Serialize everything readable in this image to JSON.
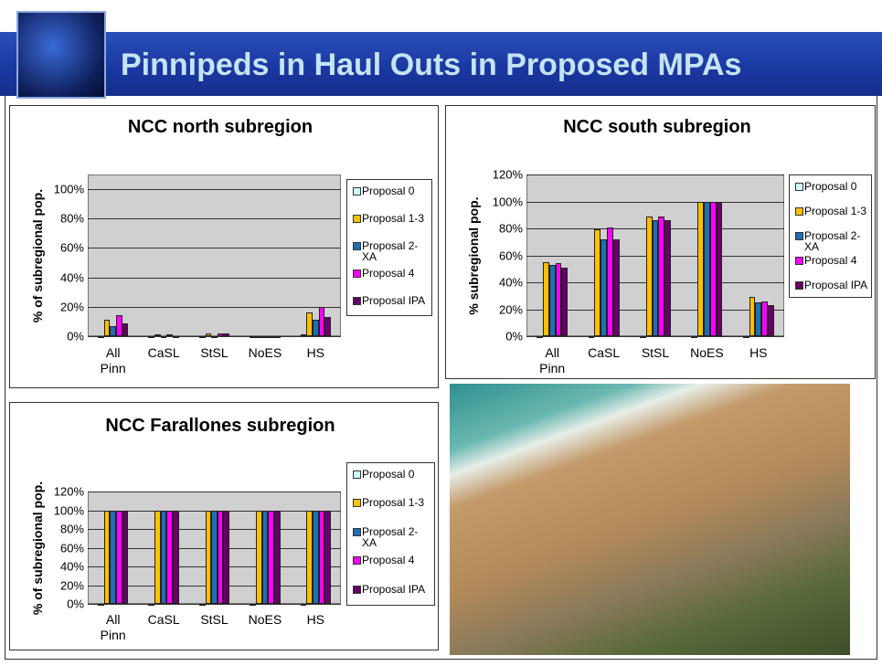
{
  "title": "Pinnipeds in Haul Outs in Proposed MPAs",
  "chart_data": [
    {
      "type": "bar",
      "title": "NCC north subregion",
      "y_label": "% of subregional pop.",
      "categories": [
        "All Pinn",
        "CaSL",
        "StSL",
        "NoES",
        "HS"
      ],
      "series": [
        {
          "name": "Proposal 0",
          "color": "#ccffff",
          "values": [
            0,
            0,
            0,
            0,
            1
          ]
        },
        {
          "name": "Proposal 1-3",
          "color": "#ffc000",
          "values": [
            11,
            1,
            2,
            0,
            16
          ]
        },
        {
          "name": "Proposal 2-XA",
          "color": "#1f6fb4",
          "values": [
            7,
            0,
            0,
            0,
            11
          ]
        },
        {
          "name": "Proposal 4",
          "color": "#ff00ff",
          "values": [
            14,
            1,
            2,
            0,
            20
          ]
        },
        {
          "name": "Proposal IPA",
          "color": "#660066",
          "values": [
            9,
            0,
            2,
            0,
            13
          ]
        }
      ],
      "ylim": [
        0,
        110
      ],
      "yticks": [
        {
          "value": 0,
          "label": "0%"
        },
        {
          "value": 20,
          "label": "20%"
        },
        {
          "value": 40,
          "label": "40%"
        },
        {
          "value": 60,
          "label": "60%"
        },
        {
          "value": 80,
          "label": "80%"
        },
        {
          "value": 100,
          "label": "100%"
        }
      ],
      "grid": true
    },
    {
      "type": "bar",
      "title": "NCC south subregion",
      "y_label": "% subregional pop.",
      "categories": [
        "All Pinn",
        "CaSL",
        "StSL",
        "NoES",
        "HS"
      ],
      "series": [
        {
          "name": "Proposal 0",
          "color": "#ccffff",
          "values": [
            0,
            0,
            0,
            0,
            0
          ]
        },
        {
          "name": "Proposal 1-3",
          "color": "#ffc000",
          "values": [
            55,
            79,
            89,
            100,
            29
          ]
        },
        {
          "name": "Proposal 2-XA",
          "color": "#1f6fb4",
          "values": [
            53,
            72,
            86,
            100,
            25
          ]
        },
        {
          "name": "Proposal 4",
          "color": "#ff00ff",
          "values": [
            54,
            81,
            89,
            100,
            26
          ]
        },
        {
          "name": "Proposal IPA",
          "color": "#660066",
          "values": [
            51,
            72,
            86,
            100,
            23
          ]
        }
      ],
      "ylim": [
        0,
        120
      ],
      "yticks": [
        {
          "value": 0,
          "label": "0%"
        },
        {
          "value": 20,
          "label": "20%"
        },
        {
          "value": 40,
          "label": "40%"
        },
        {
          "value": 60,
          "label": "60%"
        },
        {
          "value": 80,
          "label": "80%"
        },
        {
          "value": 100,
          "label": "100%"
        },
        {
          "value": 120,
          "label": "120%"
        }
      ],
      "grid": true
    },
    {
      "type": "bar",
      "title": "NCC Farallones subregion",
      "y_label": "% of subregional pop.",
      "categories": [
        "All Pinn",
        "CaSL",
        "StSL",
        "NoES",
        "HS"
      ],
      "series": [
        {
          "name": "Proposal 0",
          "color": "#ccffff",
          "values": [
            0,
            0,
            0,
            0,
            0
          ]
        },
        {
          "name": "Proposal 1-3",
          "color": "#ffc000",
          "values": [
            100,
            100,
            100,
            100,
            100
          ]
        },
        {
          "name": "Proposal 2-XA",
          "color": "#1f6fb4",
          "values": [
            100,
            100,
            100,
            100,
            100
          ]
        },
        {
          "name": "Proposal 4",
          "color": "#ff00ff",
          "values": [
            100,
            100,
            100,
            100,
            100
          ]
        },
        {
          "name": "Proposal IPA",
          "color": "#660066",
          "values": [
            100,
            100,
            100,
            100,
            100
          ]
        }
      ],
      "ylim": [
        0,
        120
      ],
      "yticks": [
        {
          "value": 0,
          "label": "0%"
        },
        {
          "value": 20,
          "label": "20%"
        },
        {
          "value": 40,
          "label": "40%"
        },
        {
          "value": 60,
          "label": "60%"
        },
        {
          "value": 80,
          "label": "80%"
        },
        {
          "value": 100,
          "label": "100%"
        },
        {
          "value": 120,
          "label": "120%"
        }
      ],
      "grid": true
    }
  ]
}
